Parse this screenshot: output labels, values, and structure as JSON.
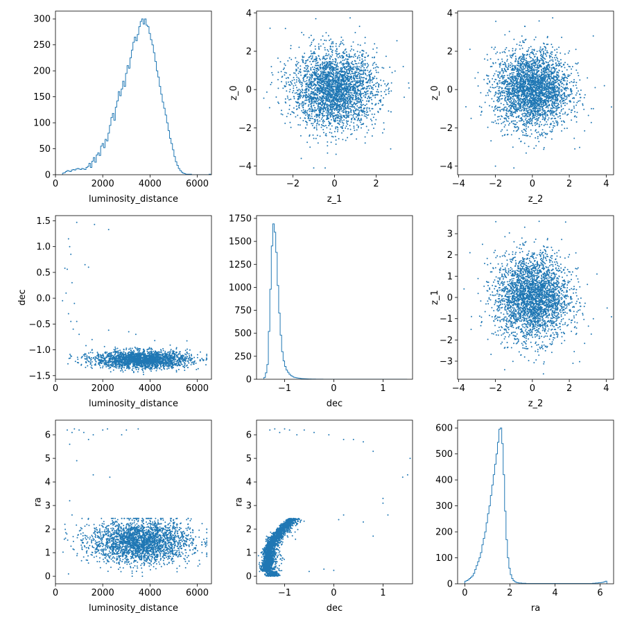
{
  "figure": {
    "facecolor": "#ffffff",
    "series_color": "#1f77b4"
  },
  "chart_data": [
    {
      "id": "hist-luminosity-distance",
      "type": "histogram",
      "xlabel": "luminosity_distance",
      "ylabel": "",
      "xlim": [
        0,
        6600
      ],
      "ylim": [
        0,
        315
      ],
      "xticks": [
        0,
        2000,
        4000,
        6000
      ],
      "yticks": [
        0,
        50,
        100,
        150,
        200,
        250,
        300
      ],
      "grid": false,
      "bins": {
        "start": 300,
        "width": 62,
        "counts": [
          3,
          4,
          6,
          8,
          7,
          6,
          9,
          10,
          9,
          11,
          12,
          11,
          10,
          12,
          11,
          10,
          14,
          16,
          22,
          14,
          26,
          33,
          24,
          38,
          42,
          37,
          55,
          60,
          52,
          68,
          65,
          80,
          95,
          110,
          118,
          105,
          130,
          142,
          160,
          152,
          165,
          180,
          170,
          195,
          210,
          205,
          225,
          240,
          255,
          265,
          258,
          270,
          285,
          295,
          300,
          290,
          300,
          288,
          285,
          272,
          260,
          250,
          235,
          218,
          200,
          188,
          170,
          155,
          140,
          128,
          115,
          100,
          85,
          70,
          60,
          48,
          35,
          25,
          18,
          12,
          8,
          5,
          3,
          2,
          1,
          1,
          1,
          1,
          0,
          0,
          0,
          0,
          0,
          0,
          0,
          0,
          0,
          0,
          0,
          0,
          1
        ]
      }
    },
    {
      "id": "scatter-z1-z0",
      "type": "scatter",
      "xlabel": "z_1",
      "ylabel": "z_0",
      "xlim": [
        -3.75,
        3.75
      ],
      "ylim": [
        -4.45,
        4.1
      ],
      "xticks": [
        -2,
        0,
        2
      ],
      "yticks": [
        -4,
        -2,
        0,
        2,
        4
      ],
      "grid": false,
      "points": {
        "distribution": "normal",
        "n": 3000,
        "mean": [
          0,
          0
        ],
        "std": [
          1,
          1
        ],
        "outliers": [
          [
            0.75,
            3.75
          ],
          [
            -0.9,
            3.7
          ],
          [
            -2.6,
            1.45
          ],
          [
            -2.7,
            0.9
          ],
          [
            3.0,
            2.55
          ],
          [
            -3.4,
            -0.45
          ],
          [
            3.35,
            -0.4
          ],
          [
            -1.0,
            -4.1
          ],
          [
            -0.45,
            -4.1
          ],
          [
            -3.1,
            3.2
          ],
          [
            2.7,
            -3.1
          ],
          [
            -1.6,
            -3.6
          ]
        ]
      }
    },
    {
      "id": "scatter-z2-z0",
      "type": "scatter",
      "xlabel": "z_2",
      "ylabel": "z_0",
      "xlim": [
        -4.05,
        4.4
      ],
      "ylim": [
        -4.45,
        4.1
      ],
      "xticks": [
        -4,
        -2,
        0,
        2,
        4
      ],
      "yticks": [
        -4,
        -2,
        0,
        2,
        4
      ],
      "grid": false,
      "points": {
        "distribution": "normal",
        "n": 3000,
        "mean": [
          0,
          0
        ],
        "std": [
          1,
          1
        ],
        "outliers": [
          [
            1.1,
            3.75
          ],
          [
            -0.4,
            3.3
          ],
          [
            -2.0,
            -4.0
          ],
          [
            -1.0,
            -4.1
          ],
          [
            3.3,
            2.8
          ],
          [
            3.9,
            0.2
          ],
          [
            3.4,
            0.1
          ],
          [
            -3.6,
            -0.9
          ],
          [
            -2.2,
            2.2
          ],
          [
            3.2,
            -1.0
          ],
          [
            -3.1,
            0.6
          ],
          [
            2.3,
            -3.1
          ]
        ]
      }
    },
    {
      "id": "scatter-ld-dec",
      "type": "scatter",
      "xlabel": "luminosity_distance",
      "ylabel": "dec",
      "xlim": [
        0,
        6600
      ],
      "ylim": [
        -1.57,
        1.6
      ],
      "xticks": [
        0,
        2000,
        4000,
        6000
      ],
      "yticks": [
        -1.5,
        -1.0,
        -0.5,
        0.0,
        0.5,
        1.0,
        1.5
      ],
      "grid": false,
      "points": {
        "distribution": "band",
        "n": 2200,
        "x_mean": 3650,
        "x_std": 1000,
        "x_range": [
          500,
          6400
        ],
        "y_mean": -1.19,
        "y_std": 0.085,
        "outliers": [
          [
            900,
            1.47
          ],
          [
            1650,
            1.43
          ],
          [
            2250,
            1.33
          ],
          [
            550,
            1.15
          ],
          [
            600,
            1.0
          ],
          [
            650,
            0.85
          ],
          [
            400,
            0.58
          ],
          [
            500,
            0.56
          ],
          [
            1250,
            0.65
          ],
          [
            1400,
            0.6
          ],
          [
            300,
            -0.05
          ],
          [
            450,
            0.1
          ],
          [
            700,
            0.3
          ],
          [
            800,
            -0.1
          ],
          [
            550,
            -0.3
          ],
          [
            650,
            -0.45
          ],
          [
            750,
            -0.6
          ],
          [
            1000,
            -0.7
          ],
          [
            2250,
            -0.62
          ],
          [
            3100,
            -0.65
          ],
          [
            3400,
            -0.7
          ],
          [
            1550,
            -0.8
          ],
          [
            900,
            -0.45
          ],
          [
            4200,
            -0.82
          ]
        ]
      }
    },
    {
      "id": "hist-dec",
      "type": "histogram",
      "xlabel": "dec",
      "ylabel": "",
      "xlim": [
        -1.57,
        1.6
      ],
      "ylim": [
        0,
        1780
      ],
      "xticks": [
        -1,
        0,
        1
      ],
      "yticks": [
        0,
        250,
        500,
        750,
        1000,
        1250,
        1500,
        1750
      ],
      "grid": false,
      "bins": {
        "start": -1.42,
        "width": 0.03,
        "counts": [
          20,
          70,
          160,
          520,
          980,
          1450,
          1690,
          1600,
          1380,
          1020,
          720,
          480,
          300,
          200,
          140,
          100,
          75,
          55,
          40,
          30,
          22,
          18,
          15,
          12,
          10,
          8,
          7,
          6,
          5,
          4,
          3,
          3,
          2,
          2,
          2,
          1,
          1,
          1,
          1,
          1,
          0,
          0,
          0,
          0,
          0,
          0,
          0,
          0,
          0,
          0,
          0,
          0,
          0,
          0,
          0,
          0,
          0,
          0,
          0,
          0,
          0,
          0,
          0,
          0,
          0,
          0,
          0,
          0,
          0,
          0,
          0,
          0,
          0,
          0,
          0,
          0,
          0,
          0,
          0,
          0,
          0,
          0,
          0,
          0,
          0,
          0,
          0,
          0,
          0,
          0,
          0,
          0,
          0,
          0,
          0,
          0,
          0
        ]
      }
    },
    {
      "id": "scatter-z2-z1",
      "type": "scatter",
      "xlabel": "z_2",
      "ylabel": "z_1",
      "xlim": [
        -4.05,
        4.4
      ],
      "ylim": [
        -3.85,
        3.85
      ],
      "xticks": [
        -4,
        -2,
        0,
        2,
        4
      ],
      "yticks": [
        -3,
        -2,
        -1,
        0,
        1,
        2,
        3
      ],
      "grid": false,
      "points": {
        "distribution": "normal",
        "n": 3000,
        "mean": [
          0,
          0
        ],
        "std": [
          1,
          1
        ],
        "outliers": [
          [
            1.8,
            3.55
          ],
          [
            -3.7,
            0.4
          ],
          [
            4.05,
            -0.5
          ],
          [
            3.5,
            1.1
          ],
          [
            -3.3,
            -0.9
          ],
          [
            -2.7,
            2.5
          ],
          [
            2.2,
            -3.1
          ],
          [
            -1.5,
            -3.4
          ],
          [
            0.6,
            -3.6
          ]
        ]
      }
    },
    {
      "id": "scatter-ld-ra",
      "type": "scatter",
      "xlabel": "luminosity_distance",
      "ylabel": "ra",
      "xlim": [
        0,
        6600
      ],
      "ylim": [
        -0.32,
        6.62
      ],
      "xticks": [
        0,
        2000,
        4000,
        6000
      ],
      "yticks": [
        0,
        1,
        2,
        3,
        4,
        5,
        6
      ],
      "grid": false,
      "points": {
        "distribution": "band",
        "n": 2600,
        "x_mean": 3600,
        "x_std": 1050,
        "x_range": [
          300,
          6400
        ],
        "y_mean": 1.45,
        "y_std": 0.45,
        "y_range": [
          0,
          2.45
        ],
        "outliers": [
          [
            500,
            6.2
          ],
          [
            700,
            6.1
          ],
          [
            800,
            6.25
          ],
          [
            1000,
            6.2
          ],
          [
            1200,
            6.1
          ],
          [
            1400,
            5.8
          ],
          [
            1600,
            6.0
          ],
          [
            2000,
            6.2
          ],
          [
            2200,
            6.25
          ],
          [
            2800,
            6.0
          ],
          [
            3000,
            6.2
          ],
          [
            3500,
            6.25
          ],
          [
            600,
            5.6
          ],
          [
            900,
            4.9
          ],
          [
            1600,
            4.3
          ],
          [
            2300,
            4.2
          ],
          [
            600,
            3.2
          ],
          [
            700,
            2.6
          ],
          [
            400,
            2.2
          ],
          [
            550,
            0.1
          ],
          [
            6400,
            2.0
          ],
          [
            6200,
            1.0
          ]
        ]
      }
    },
    {
      "id": "scatter-dec-ra",
      "type": "scatter",
      "xlabel": "dec",
      "ylabel": "ra",
      "xlim": [
        -1.57,
        1.6
      ],
      "ylim": [
        -0.32,
        6.62
      ],
      "xticks": [
        -1,
        0,
        1
      ],
      "yticks": [
        0,
        1,
        2,
        3,
        4,
        5,
        6
      ],
      "grid": false,
      "points": {
        "distribution": "arc",
        "n": 2400,
        "outliers": [
          [
            -1.3,
            6.2
          ],
          [
            -1.2,
            6.25
          ],
          [
            -1.1,
            6.1
          ],
          [
            -1.0,
            6.25
          ],
          [
            -0.9,
            6.2
          ],
          [
            -0.75,
            6.0
          ],
          [
            -0.6,
            6.2
          ],
          [
            -0.4,
            6.1
          ],
          [
            -0.1,
            6.0
          ],
          [
            0.2,
            5.8
          ],
          [
            0.4,
            5.8
          ],
          [
            0.6,
            5.7
          ],
          [
            0.8,
            5.3
          ],
          [
            1.4,
            4.2
          ],
          [
            1.5,
            4.3
          ],
          [
            1.55,
            5.0
          ],
          [
            1.0,
            3.3
          ],
          [
            1.0,
            3.1
          ],
          [
            1.1,
            2.6
          ],
          [
            0.6,
            2.3
          ],
          [
            0.2,
            2.6
          ],
          [
            0.1,
            2.4
          ],
          [
            0.8,
            1.7
          ],
          [
            -0.2,
            0.3
          ],
          [
            -0.5,
            0.2
          ],
          [
            0.0,
            0.25
          ]
        ]
      }
    },
    {
      "id": "hist-ra",
      "type": "histogram",
      "xlabel": "ra",
      "ylabel": "",
      "xlim": [
        -0.32,
        6.6
      ],
      "ylim": [
        0,
        630
      ],
      "xticks": [
        0,
        2,
        4,
        6
      ],
      "yticks": [
        0,
        100,
        200,
        300,
        400,
        500,
        600
      ],
      "grid": false,
      "bins": {
        "start": 0.0,
        "width": 0.063,
        "counts": [
          10,
          12,
          15,
          20,
          25,
          30,
          40,
          55,
          70,
          85,
          100,
          120,
          150,
          175,
          200,
          235,
          270,
          300,
          340,
          380,
          420,
          460,
          500,
          545,
          595,
          600,
          540,
          420,
          280,
          170,
          100,
          60,
          35,
          20,
          12,
          8,
          5,
          4,
          3,
          3,
          2,
          2,
          2,
          1,
          1,
          1,
          1,
          1,
          1,
          1,
          1,
          1,
          1,
          1,
          1,
          1,
          1,
          1,
          1,
          1,
          1,
          1,
          1,
          1,
          1,
          1,
          1,
          1,
          1,
          1,
          1,
          1,
          1,
          1,
          1,
          1,
          1,
          1,
          1,
          1,
          1,
          1,
          1,
          1,
          1,
          1,
          1,
          1,
          1,
          1,
          2,
          2,
          3,
          3,
          4,
          4,
          5,
          6,
          8,
          10
        ]
      }
    }
  ]
}
